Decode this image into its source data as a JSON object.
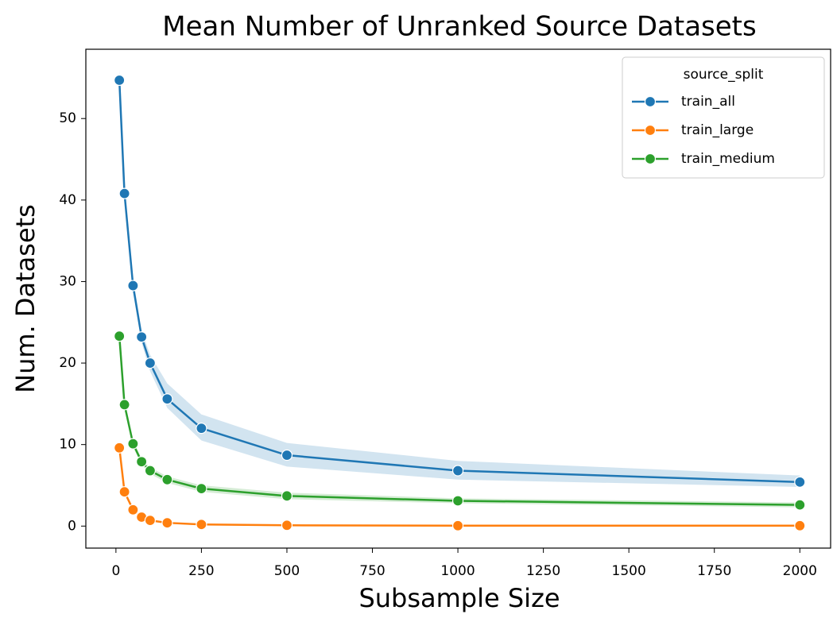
{
  "chart_data": {
    "type": "line",
    "title": "Mean Number of Unranked Source Datasets",
    "x_label": "Subsample Size",
    "y_label": "Num. Datasets",
    "legend_title": "source_split",
    "legend": "upper right",
    "x": [
      10,
      25,
      50,
      75,
      100,
      150,
      250,
      500,
      1000,
      2000
    ],
    "series": [
      {
        "name": "train_all",
        "color": "#1f77b4",
        "values": [
          54.7,
          40.8,
          29.5,
          23.2,
          20.0,
          15.6,
          12.0,
          8.7,
          6.8,
          5.4
        ],
        "lower": [
          53.5,
          40.0,
          29.0,
          22.5,
          19.0,
          14.5,
          10.5,
          7.3,
          5.7,
          4.8
        ],
        "upper": [
          56.0,
          41.5,
          30.5,
          24.0,
          21.0,
          17.5,
          13.7,
          10.2,
          8.0,
          6.2
        ]
      },
      {
        "name": "train_large",
        "color": "#ff7f0e",
        "values": [
          9.6,
          4.2,
          2.0,
          1.1,
          0.7,
          0.4,
          0.2,
          0.1,
          0.05,
          0.05
        ],
        "lower": [
          9.4,
          4.0,
          1.8,
          0.95,
          0.55,
          0.3,
          0.1,
          0.05,
          0.0,
          0.0
        ],
        "upper": [
          9.8,
          4.4,
          2.2,
          1.25,
          0.85,
          0.5,
          0.3,
          0.15,
          0.1,
          0.1
        ]
      },
      {
        "name": "train_medium",
        "color": "#2ca02c",
        "values": [
          23.3,
          14.9,
          10.1,
          7.9,
          6.8,
          5.7,
          4.6,
          3.7,
          3.1,
          2.6
        ],
        "lower": [
          23.0,
          14.5,
          9.7,
          7.5,
          6.4,
          5.3,
          4.2,
          3.3,
          2.8,
          2.3
        ],
        "upper": [
          23.6,
          15.3,
          10.5,
          8.3,
          7.2,
          6.1,
          5.0,
          4.1,
          3.4,
          2.9
        ]
      }
    ],
    "xlim": [
      -88,
      2090
    ],
    "ylim": [
      -2.7,
      58.5
    ],
    "xticks": [
      0,
      250,
      500,
      750,
      1000,
      1250,
      1500,
      1750,
      2000
    ],
    "yticks": [
      0,
      10,
      20,
      30,
      40,
      50
    ],
    "grid": false
  }
}
